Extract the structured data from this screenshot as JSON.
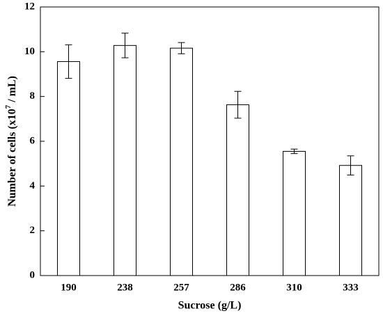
{
  "chart_data": {
    "type": "bar",
    "x_label": "Sucrose (g/L)",
    "y_label": {
      "text": "Number of cells (x10",
      "sup": "7",
      "tail": " / mL)"
    },
    "categories": [
      "190",
      "238",
      "257",
      "286",
      "310",
      "333"
    ],
    "values": [
      9.56,
      10.28,
      10.16,
      7.63,
      5.55,
      4.92
    ],
    "errors": [
      0.75,
      0.55,
      0.25,
      0.6,
      0.1,
      0.43
    ],
    "color": "#ffffff",
    "edge_color": "#000000",
    "ylim": [
      0,
      12
    ],
    "yticks": [
      0,
      2,
      4,
      6,
      8,
      10,
      12
    ],
    "grid": false
  }
}
